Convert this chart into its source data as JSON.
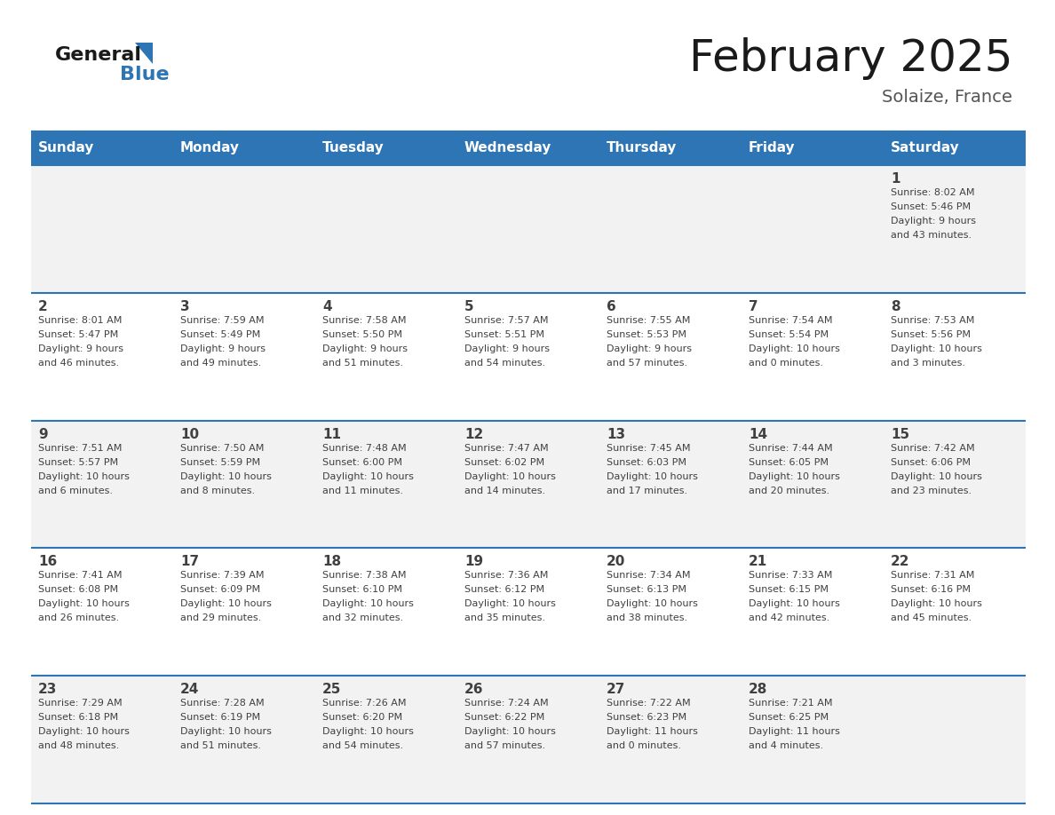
{
  "title": "February 2025",
  "subtitle": "Solaize, France",
  "header_bg_color": "#2E75B6",
  "header_text_color": "#FFFFFF",
  "day_names": [
    "Sunday",
    "Monday",
    "Tuesday",
    "Wednesday",
    "Thursday",
    "Friday",
    "Saturday"
  ],
  "alt_row_bg": "#F2F2F2",
  "white_bg": "#FFFFFF",
  "cell_border_color": "#2E75B6",
  "text_color": "#404040",
  "logo_general_color": "#1A1A1A",
  "logo_blue_color": "#2E75B6",
  "weeks": [
    [
      {
        "day": null,
        "sunrise": null,
        "sunset": null,
        "daylight": null
      },
      {
        "day": null,
        "sunrise": null,
        "sunset": null,
        "daylight": null
      },
      {
        "day": null,
        "sunrise": null,
        "sunset": null,
        "daylight": null
      },
      {
        "day": null,
        "sunrise": null,
        "sunset": null,
        "daylight": null
      },
      {
        "day": null,
        "sunrise": null,
        "sunset": null,
        "daylight": null
      },
      {
        "day": null,
        "sunrise": null,
        "sunset": null,
        "daylight": null
      },
      {
        "day": 1,
        "sunrise": "8:02 AM",
        "sunset": "5:46 PM",
        "daylight": "9 hours\nand 43 minutes."
      }
    ],
    [
      {
        "day": 2,
        "sunrise": "8:01 AM",
        "sunset": "5:47 PM",
        "daylight": "9 hours\nand 46 minutes."
      },
      {
        "day": 3,
        "sunrise": "7:59 AM",
        "sunset": "5:49 PM",
        "daylight": "9 hours\nand 49 minutes."
      },
      {
        "day": 4,
        "sunrise": "7:58 AM",
        "sunset": "5:50 PM",
        "daylight": "9 hours\nand 51 minutes."
      },
      {
        "day": 5,
        "sunrise": "7:57 AM",
        "sunset": "5:51 PM",
        "daylight": "9 hours\nand 54 minutes."
      },
      {
        "day": 6,
        "sunrise": "7:55 AM",
        "sunset": "5:53 PM",
        "daylight": "9 hours\nand 57 minutes."
      },
      {
        "day": 7,
        "sunrise": "7:54 AM",
        "sunset": "5:54 PM",
        "daylight": "10 hours\nand 0 minutes."
      },
      {
        "day": 8,
        "sunrise": "7:53 AM",
        "sunset": "5:56 PM",
        "daylight": "10 hours\nand 3 minutes."
      }
    ],
    [
      {
        "day": 9,
        "sunrise": "7:51 AM",
        "sunset": "5:57 PM",
        "daylight": "10 hours\nand 6 minutes."
      },
      {
        "day": 10,
        "sunrise": "7:50 AM",
        "sunset": "5:59 PM",
        "daylight": "10 hours\nand 8 minutes."
      },
      {
        "day": 11,
        "sunrise": "7:48 AM",
        "sunset": "6:00 PM",
        "daylight": "10 hours\nand 11 minutes."
      },
      {
        "day": 12,
        "sunrise": "7:47 AM",
        "sunset": "6:02 PM",
        "daylight": "10 hours\nand 14 minutes."
      },
      {
        "day": 13,
        "sunrise": "7:45 AM",
        "sunset": "6:03 PM",
        "daylight": "10 hours\nand 17 minutes."
      },
      {
        "day": 14,
        "sunrise": "7:44 AM",
        "sunset": "6:05 PM",
        "daylight": "10 hours\nand 20 minutes."
      },
      {
        "day": 15,
        "sunrise": "7:42 AM",
        "sunset": "6:06 PM",
        "daylight": "10 hours\nand 23 minutes."
      }
    ],
    [
      {
        "day": 16,
        "sunrise": "7:41 AM",
        "sunset": "6:08 PM",
        "daylight": "10 hours\nand 26 minutes."
      },
      {
        "day": 17,
        "sunrise": "7:39 AM",
        "sunset": "6:09 PM",
        "daylight": "10 hours\nand 29 minutes."
      },
      {
        "day": 18,
        "sunrise": "7:38 AM",
        "sunset": "6:10 PM",
        "daylight": "10 hours\nand 32 minutes."
      },
      {
        "day": 19,
        "sunrise": "7:36 AM",
        "sunset": "6:12 PM",
        "daylight": "10 hours\nand 35 minutes."
      },
      {
        "day": 20,
        "sunrise": "7:34 AM",
        "sunset": "6:13 PM",
        "daylight": "10 hours\nand 38 minutes."
      },
      {
        "day": 21,
        "sunrise": "7:33 AM",
        "sunset": "6:15 PM",
        "daylight": "10 hours\nand 42 minutes."
      },
      {
        "day": 22,
        "sunrise": "7:31 AM",
        "sunset": "6:16 PM",
        "daylight": "10 hours\nand 45 minutes."
      }
    ],
    [
      {
        "day": 23,
        "sunrise": "7:29 AM",
        "sunset": "6:18 PM",
        "daylight": "10 hours\nand 48 minutes."
      },
      {
        "day": 24,
        "sunrise": "7:28 AM",
        "sunset": "6:19 PM",
        "daylight": "10 hours\nand 51 minutes."
      },
      {
        "day": 25,
        "sunrise": "7:26 AM",
        "sunset": "6:20 PM",
        "daylight": "10 hours\nand 54 minutes."
      },
      {
        "day": 26,
        "sunrise": "7:24 AM",
        "sunset": "6:22 PM",
        "daylight": "10 hours\nand 57 minutes."
      },
      {
        "day": 27,
        "sunrise": "7:22 AM",
        "sunset": "6:23 PM",
        "daylight": "11 hours\nand 0 minutes."
      },
      {
        "day": 28,
        "sunrise": "7:21 AM",
        "sunset": "6:25 PM",
        "daylight": "11 hours\nand 4 minutes."
      },
      {
        "day": null,
        "sunrise": null,
        "sunset": null,
        "daylight": null
      }
    ]
  ]
}
